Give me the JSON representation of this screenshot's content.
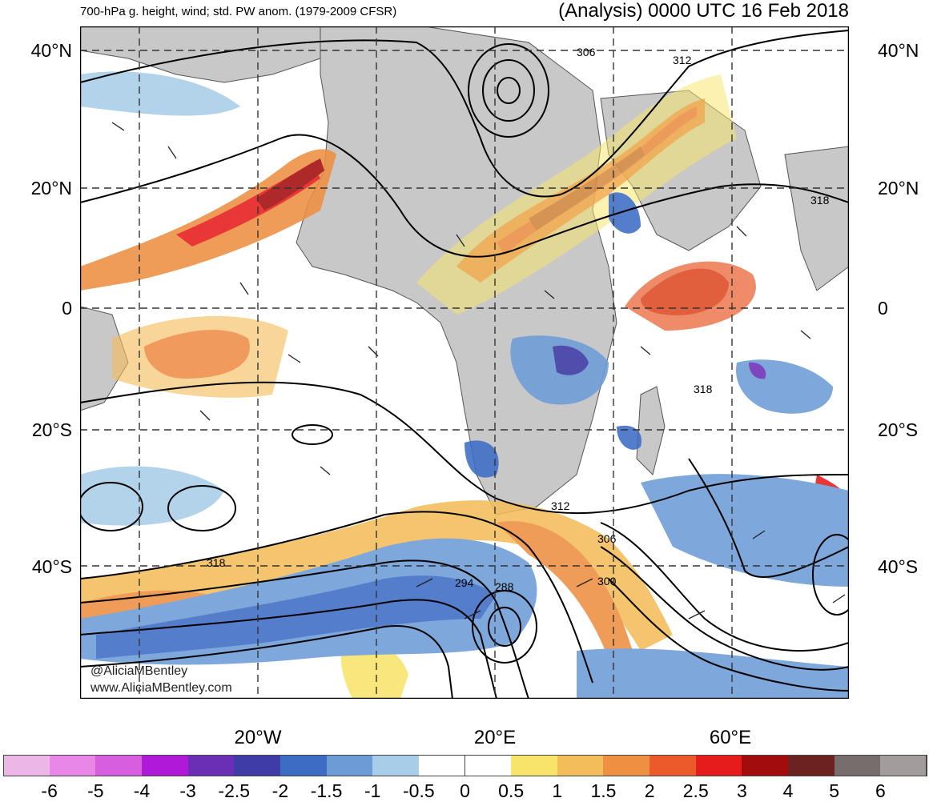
{
  "header": {
    "left_title": "700-hPa g. height, wind; std. PW anom. (1979-2009 CFSR)",
    "right_title": "(Analysis) 0000 UTC 16 Feb 2018"
  },
  "latitude_labels": [
    "40°N",
    "20°N",
    "0",
    "20°S",
    "40°S"
  ],
  "longitude_labels": [
    "20°W",
    "20°E",
    "60°E"
  ],
  "contour_labels": [
    "306",
    "312",
    "318",
    "318",
    "312",
    "306",
    "300",
    "294",
    "288",
    "318"
  ],
  "credits": {
    "twitter": "@AliciaMBentley",
    "website": "www.AliciaMBentley.com"
  },
  "colorbar": {
    "tick_labels": [
      "-6",
      "-5",
      "-4",
      "-3",
      "-2.5",
      "-2",
      "-1.5",
      "-1",
      "-0.5",
      "0",
      "0.5",
      "1",
      "1.5",
      "2",
      "2.5",
      "3",
      "4",
      "5",
      "6"
    ],
    "colors": [
      "#ecb6e6",
      "#e887e6",
      "#d85ee0",
      "#b119d8",
      "#6b2fb5",
      "#3f3ca8",
      "#3d6cc4",
      "#6d9bd6",
      "#a8cde8",
      "#ffffff",
      "#ffffff",
      "#f9e46b",
      "#f3bd5a",
      "#ee8f42",
      "#ea5a2b",
      "#e61c1c",
      "#a30c0c",
      "#6d2222",
      "#776d6d",
      "#a39c9c"
    ]
  },
  "colors": {
    "land": "#c8c8c8",
    "ocean_base": "#ffffff",
    "contour": "#000000",
    "grid": "#333333"
  }
}
